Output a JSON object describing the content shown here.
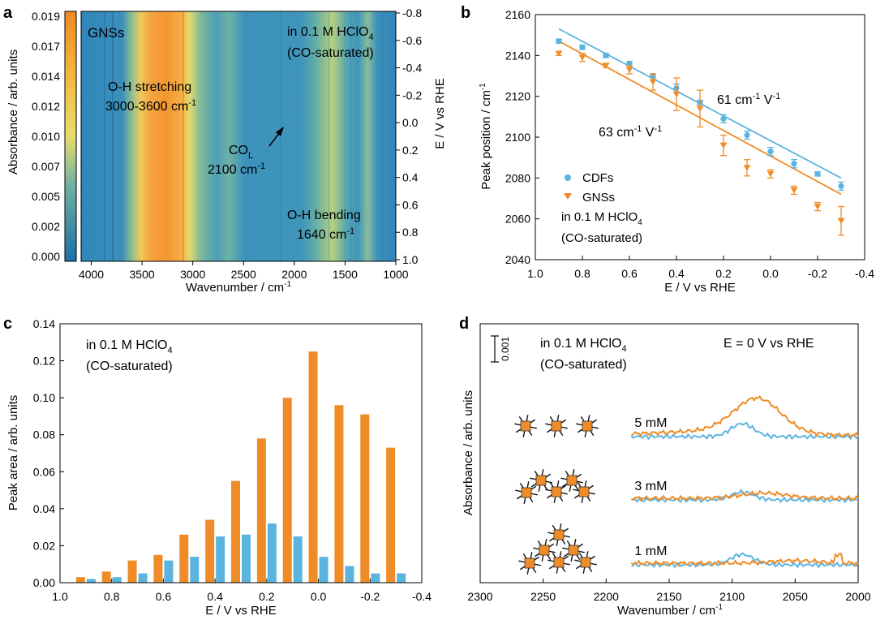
{
  "colors": {
    "orange": "#F08C28",
    "blue": "#5BB4E0",
    "blue_text": "#5BB4E0"
  },
  "chart_data": [
    {
      "panel": "a",
      "type": "heatmap",
      "xlabel": "Wavenumber / cm-1",
      "xlim": [
        4100,
        1000
      ],
      "x_ticks": [
        "4000",
        "3500",
        "3000",
        "2500",
        "2000",
        "1500",
        "1000"
      ],
      "ylabel_left": "Absorbance / arb. units",
      "colorbar_ticks": [
        "0.019",
        "0.017",
        "0.014",
        "0.012",
        "0.010",
        "0.007",
        "0.005",
        "0.002",
        "0.000"
      ],
      "ylabel_right": "E / V vs RHE",
      "right_ticks": [
        "-0.8",
        "-0.6",
        "-0.4",
        "-0.2",
        "0.0",
        "0.2",
        "0.4",
        "0.6",
        "0.8",
        "1.0"
      ],
      "annotations": {
        "sample": "GNSs",
        "electrolyte": "in 0.1 M HClO",
        "electrolyte_sub": "4",
        "condition": "(CO-saturated)",
        "oh_stretch": "O-H stretching",
        "oh_stretch_range": "3000-3600 cm",
        "oh_stretch_sup": "-1",
        "co": "CO",
        "co_sub": "L",
        "co_wn": "2100 cm",
        "co_sup": "-1",
        "oh_bend": "O-H bending",
        "oh_bend_wn": "1640 cm",
        "oh_bend_sup": "-1"
      }
    },
    {
      "panel": "b",
      "type": "scatter",
      "xlabel": "E / V vs RHE",
      "ylabel": "Peak position / cm-1",
      "xlim": [
        1.0,
        -0.4
      ],
      "ylim": [
        2040,
        2160
      ],
      "x_ticks": [
        "1.0",
        "0.8",
        "0.6",
        "0.4",
        "0.2",
        "0.0",
        "-0.2",
        "-0.4"
      ],
      "y_ticks": [
        "2040",
        "2060",
        "2080",
        "2100",
        "2120",
        "2140",
        "2160"
      ],
      "legend": [
        "CDFs",
        "GNSs"
      ],
      "note": "in 0.1 M HClO",
      "note_sub": "4",
      "note2": "(CO-saturated)",
      "slope_cdf": "61 cm",
      "slope_gns": "63 cm",
      "slope_sup1": "-1",
      "slope_mid": " V",
      "slope_sup2": "-1",
      "series": [
        {
          "name": "CDFs",
          "x": [
            0.9,
            0.8,
            0.7,
            0.6,
            0.5,
            0.4,
            0.3,
            0.2,
            0.1,
            0.0,
            -0.1,
            -0.2,
            -0.3
          ],
          "y": [
            2147,
            2144,
            2140,
            2136,
            2130,
            2124,
            2117,
            2109,
            2101,
            2093,
            2087,
            2082,
            2076
          ],
          "err": [
            1,
            1,
            1,
            1,
            1,
            2,
            1,
            2,
            2,
            2,
            2,
            1,
            2
          ],
          "fit": [
            [
              0.9,
              2153
            ],
            [
              -0.3,
              2080
            ]
          ]
        },
        {
          "name": "GNSs",
          "x": [
            0.9,
            0.8,
            0.7,
            0.6,
            0.5,
            0.4,
            0.3,
            0.2,
            0.1,
            0.0,
            -0.1,
            -0.2,
            -0.3
          ],
          "y": [
            2141,
            2139,
            2135,
            2133,
            2127,
            2121,
            2114,
            2096,
            2085,
            2082,
            2074,
            2066,
            2059
          ],
          "err": [
            1,
            2,
            1,
            2,
            4,
            8,
            9,
            5,
            4,
            2,
            2,
            2,
            7
          ],
          "fit": [
            [
              0.9,
              2147
            ],
            [
              -0.3,
              2072
            ]
          ]
        }
      ]
    },
    {
      "panel": "c",
      "type": "bar",
      "xlabel": "E / V vs RHE",
      "ylabel": "Peak area / arb. units",
      "xlim": [
        1.0,
        -0.4
      ],
      "ylim": [
        0,
        0.14
      ],
      "x_ticks": [
        "1.0",
        "0.8",
        "0.6",
        "0.4",
        "0.2",
        "0.0",
        "-0.2",
        "-0.4"
      ],
      "y_ticks": [
        "0.00",
        "0.02",
        "0.04",
        "0.06",
        "0.08",
        "0.10",
        "0.12",
        "0.14"
      ],
      "note": "in 0.1 M HClO",
      "note_sub": "4",
      "note2": "(CO-saturated)",
      "x": [
        0.9,
        0.8,
        0.7,
        0.6,
        0.5,
        0.4,
        0.3,
        0.2,
        0.1,
        0.0,
        -0.1,
        -0.2,
        -0.3
      ],
      "series": [
        {
          "name": "GNSs",
          "values": [
            0.003,
            0.006,
            0.012,
            0.015,
            0.026,
            0.034,
            0.055,
            0.078,
            0.1,
            0.125,
            0.096,
            0.091,
            0.073
          ]
        },
        {
          "name": "CDFs",
          "values": [
            0.002,
            0.003,
            0.005,
            0.012,
            0.014,
            0.025,
            0.026,
            0.032,
            0.025,
            0.014,
            0.009,
            0.005,
            0.005
          ]
        }
      ]
    },
    {
      "panel": "d",
      "type": "line",
      "xlabel": "Wavenumber / cm-1",
      "ylabel": "Absorbance / arb. units",
      "xlim": [
        2300,
        2000
      ],
      "x_ticks": [
        "2300",
        "2250",
        "2200",
        "2150",
        "2100",
        "2050",
        "2000"
      ],
      "scale_bar": "0.001",
      "note": "in 0.1 M HClO",
      "note_sub": "4",
      "note2": "(CO-saturated)",
      "potential": "E = 0 V vs RHE",
      "traces": [
        {
          "label": "5 mM",
          "gns_peak": 2080,
          "gns_amp": 0.0013,
          "cdf_peak": 2092,
          "cdf_amp": 0.0005
        },
        {
          "label": "3 mM",
          "gns_peak": 2075,
          "gns_amp": 0.0002,
          "cdf_peak": 2092,
          "cdf_amp": 0.0003
        },
        {
          "label": "1 mM",
          "gns_peak": 2050,
          "gns_amp": 0.0001,
          "cdf_peak": 2092,
          "cdf_amp": 0.0004
        }
      ]
    }
  ],
  "panel_labels": [
    "a",
    "b",
    "c",
    "d"
  ]
}
